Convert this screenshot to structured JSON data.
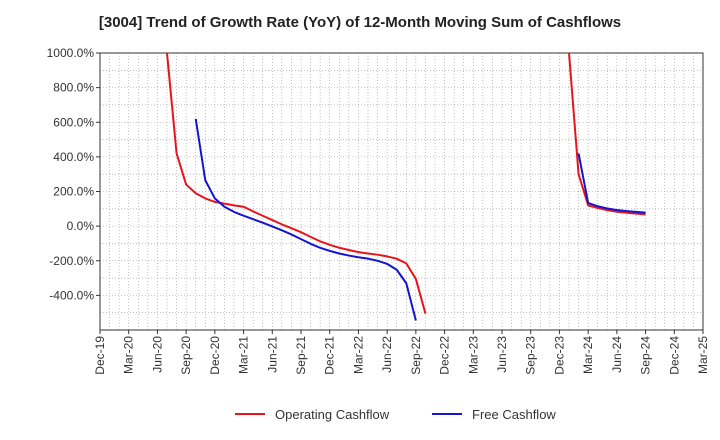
{
  "chart_data": {
    "type": "line",
    "title": "[3004]  Trend of Growth Rate (YoY) of 12-Month Moving Sum of Cashflows",
    "xlabel": "",
    "ylabel": "",
    "ylim": [
      -600,
      1000
    ],
    "yticks": [
      1000,
      800,
      600,
      400,
      200,
      0,
      -200,
      -400
    ],
    "ytick_labels": [
      "1000.0%",
      "800.0%",
      "600.0%",
      "400.0%",
      "200.0%",
      "0.0%",
      "-200.0%",
      "-400.0%"
    ],
    "x_tick_labels": [
      "Dec-19",
      "Mar-20",
      "Jun-20",
      "Sep-20",
      "Dec-20",
      "Mar-21",
      "Jun-21",
      "Sep-21",
      "Dec-21",
      "Mar-22",
      "Jun-22",
      "Sep-22",
      "Dec-22",
      "Mar-23",
      "Jun-23",
      "Sep-23",
      "Dec-23",
      "Mar-24",
      "Jun-24",
      "Sep-24",
      "Dec-24",
      "Mar-25"
    ],
    "grid": true,
    "legend_position": "bottom",
    "series": [
      {
        "name": "Operating Cashflow",
        "color": "#e8141c",
        "points": [
          [
            "2020-07",
            1000
          ],
          [
            "2020-08",
            420
          ],
          [
            "2020-09",
            240
          ],
          [
            "2020-10",
            190
          ],
          [
            "2020-11",
            160
          ],
          [
            "2020-12",
            140
          ],
          [
            "2021-01",
            130
          ],
          [
            "2021-02",
            120
          ],
          [
            "2021-03",
            112
          ],
          [
            "2021-04",
            85
          ],
          [
            "2021-05",
            60
          ],
          [
            "2021-06",
            35
          ],
          [
            "2021-07",
            10
          ],
          [
            "2021-08",
            -12
          ],
          [
            "2021-09",
            -35
          ],
          [
            "2021-10",
            -62
          ],
          [
            "2021-11",
            -88
          ],
          [
            "2021-12",
            -108
          ],
          [
            "2022-01",
            -125
          ],
          [
            "2022-02",
            -138
          ],
          [
            "2022-03",
            -150
          ],
          [
            "2022-04",
            -158
          ],
          [
            "2022-05",
            -165
          ],
          [
            "2022-06",
            -175
          ],
          [
            "2022-07",
            -188
          ],
          [
            "2022-08",
            -215
          ],
          [
            "2022-09",
            -305
          ],
          [
            "2022-10",
            -505
          ]
        ]
      },
      {
        "name": "Free Cashflow",
        "color": "#1414d2",
        "points": [
          [
            "2020-10",
            620
          ],
          [
            "2020-11",
            265
          ],
          [
            "2020-12",
            160
          ],
          [
            "2021-01",
            112
          ],
          [
            "2021-02",
            82
          ],
          [
            "2021-03",
            60
          ],
          [
            "2021-04",
            40
          ],
          [
            "2021-05",
            20
          ],
          [
            "2021-06",
            -2
          ],
          [
            "2021-07",
            -24
          ],
          [
            "2021-08",
            -48
          ],
          [
            "2021-09",
            -75
          ],
          [
            "2021-10",
            -102
          ],
          [
            "2021-11",
            -125
          ],
          [
            "2021-12",
            -143
          ],
          [
            "2022-01",
            -158
          ],
          [
            "2022-02",
            -170
          ],
          [
            "2022-03",
            -180
          ],
          [
            "2022-04",
            -188
          ],
          [
            "2022-05",
            -200
          ],
          [
            "2022-06",
            -218
          ],
          [
            "2022-07",
            -252
          ],
          [
            "2022-08",
            -330
          ],
          [
            "2022-09",
            -545
          ]
        ]
      },
      {
        "name": "Operating Cashflow",
        "color": "#e8141c",
        "legend": false,
        "points": [
          [
            "2024-01",
            1000
          ],
          [
            "2024-02",
            300
          ],
          [
            "2024-03",
            120
          ],
          [
            "2024-04",
            105
          ],
          [
            "2024-05",
            92
          ],
          [
            "2024-06",
            83
          ],
          [
            "2024-07",
            77
          ],
          [
            "2024-08",
            72
          ],
          [
            "2024-09",
            68
          ]
        ]
      },
      {
        "name": "Free Cashflow",
        "color": "#1414d2",
        "legend": false,
        "points": [
          [
            "2024-02",
            420
          ],
          [
            "2024-03",
            133
          ],
          [
            "2024-04",
            115
          ],
          [
            "2024-05",
            102
          ],
          [
            "2024-06",
            93
          ],
          [
            "2024-07",
            87
          ],
          [
            "2024-08",
            82
          ],
          [
            "2024-09",
            78
          ]
        ]
      }
    ]
  }
}
